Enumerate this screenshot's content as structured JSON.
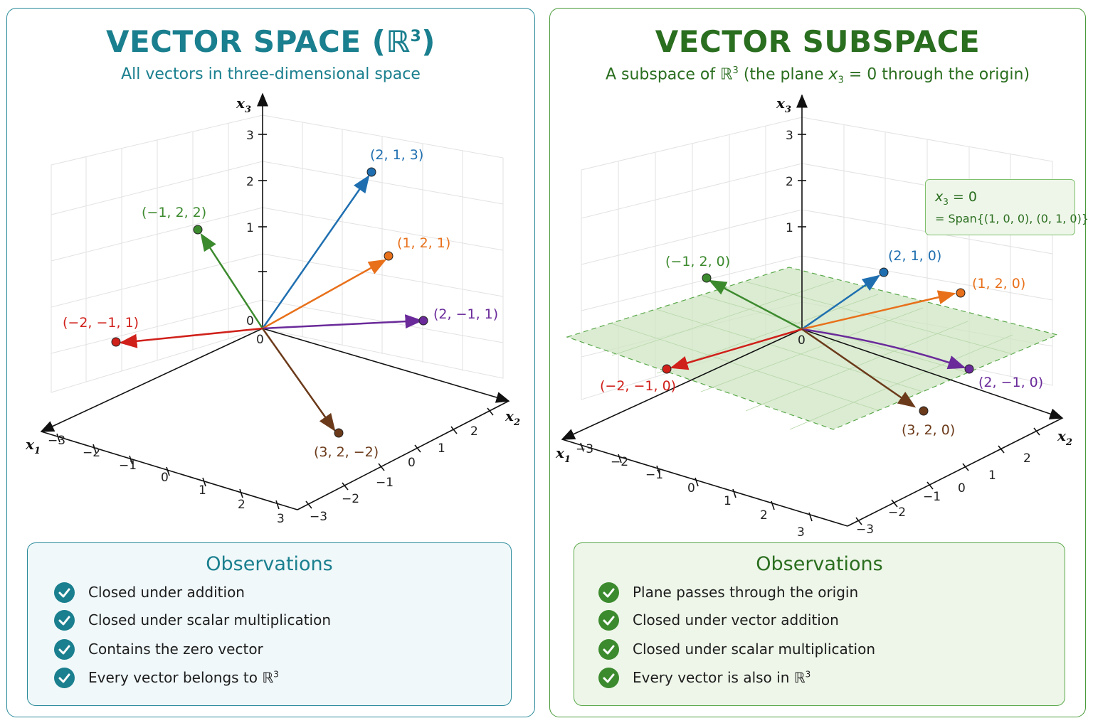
{
  "left_panel": {
    "title": "VECTOR SPACE (ℝ",
    "title_sup": "3",
    "title_end": ")",
    "subtitle": "All vectors in three-dimensional space",
    "axis_labels": {
      "x1": "x",
      "x1_sub": "1",
      "x2": "x",
      "x2_sub": "2",
      "x3": "x",
      "x3_sub": "3"
    },
    "origin_labels": [
      "0",
      "0"
    ],
    "x1_ticks": [
      "−3",
      "−2",
      "−1",
      "0",
      "1",
      "2",
      "3"
    ],
    "x2_ticks": [
      "−3",
      "−2",
      "−1",
      "0",
      "1",
      "2"
    ],
    "x3_ticks": [
      "3",
      "2",
      "1"
    ],
    "vectors": [
      {
        "label": "(2, 1, 3)",
        "color": "#1f6fb0"
      },
      {
        "label": "(−1, 2, 2)",
        "color": "#3c8a2e"
      },
      {
        "label": "(1, 2, 1)",
        "color": "#e8701a"
      },
      {
        "label": "(−2, −1, 1)",
        "color": "#d0201a"
      },
      {
        "label": "(2, −1, 1)",
        "color": "#6a2a9a"
      },
      {
        "label": "(3, 2, −2)",
        "color": "#6b3a1a"
      }
    ],
    "observations_title": "Observations",
    "observations": [
      "Closed under addition",
      "Closed under scalar multiplication",
      "Contains the zero vector",
      "Every vector belongs to ℝ"
    ],
    "observation_last_sup": "3"
  },
  "right_panel": {
    "title": "VECTOR SUBSPACE",
    "subtitle_a": "A subspace of ℝ",
    "subtitle_sup": "3",
    "subtitle_b": " (the plane ",
    "subtitle_var": "x",
    "subtitle_sub": "3",
    "subtitle_c": " = 0 through the origin)",
    "axis_labels": {
      "x1": "x",
      "x1_sub": "1",
      "x2": "x",
      "x2_sub": "2",
      "x3": "x",
      "x3_sub": "3"
    },
    "origin_label": "0",
    "x1_ticks": [
      "−3",
      "−2",
      "−1",
      "0",
      "1",
      "2",
      "3"
    ],
    "x2_ticks": [
      "−3",
      "−2",
      "−1",
      "0",
      "1",
      "2"
    ],
    "x3_ticks": [
      "3",
      "2",
      "1"
    ],
    "legend": {
      "var": "x",
      "sub": "3",
      "eq": " = 0",
      "span": "= Span{(1, 0, 0), (0, 1, 0)}"
    },
    "plane_color": "#cfe6c3",
    "vectors": [
      {
        "label": "(2, 1, 0)",
        "color": "#1f6fb0"
      },
      {
        "label": "(−1, 2, 0)",
        "color": "#3c8a2e"
      },
      {
        "label": "(1, 2, 0)",
        "color": "#e8701a"
      },
      {
        "label": "(−2, −1, 0)",
        "color": "#d0201a"
      },
      {
        "label": "(2, −1, 0)",
        "color": "#6a2a9a"
      },
      {
        "label": "(3, 2, 0)",
        "color": "#6b3a1a"
      }
    ],
    "observations_title": "Observations",
    "observations": [
      "Plane passes through the origin",
      "Closed under vector addition",
      "Closed under scalar multiplication",
      "Every vector is also in ℝ"
    ],
    "observation_last_sup": "3"
  }
}
